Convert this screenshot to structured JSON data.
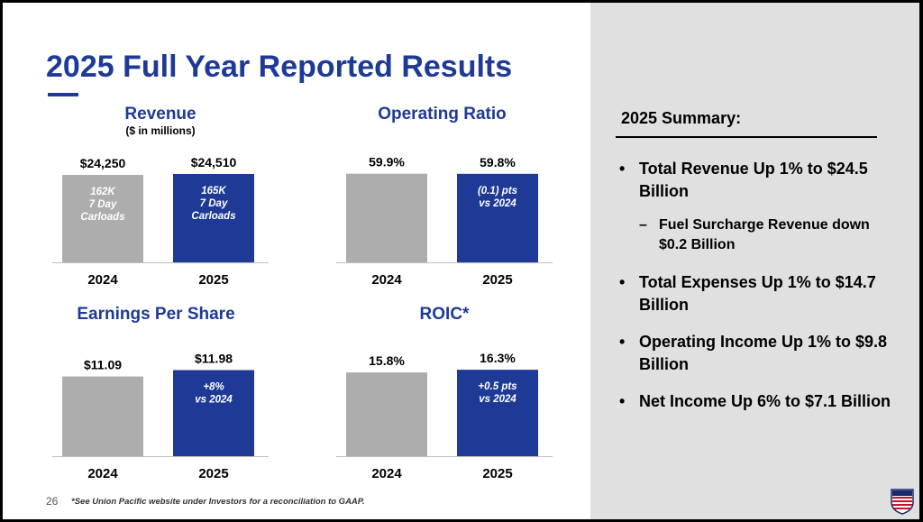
{
  "page": {
    "title": "2025 Full Year Reported Results",
    "page_number": "26",
    "footnote": "*See Union Pacific website under Investors for a reconciliation to GAAP."
  },
  "colors": {
    "accent": "#1e3a96",
    "bar_2024": "#adadad",
    "bar_2025": "#1e3a96",
    "panel": "#e0e0e0"
  },
  "chart_data": [
    {
      "type": "bar",
      "title": "Revenue",
      "subtitle": "($ in millions)",
      "categories": [
        "2024",
        "2025"
      ],
      "values": [
        24250,
        24510
      ],
      "value_labels": [
        "$24,250",
        "$24,510"
      ],
      "bar_notes": [
        [
          "162K",
          "7 Day",
          "Carloads"
        ],
        [
          "165K",
          "7 Day",
          "Carloads"
        ]
      ],
      "ylim": [
        0,
        27500
      ]
    },
    {
      "type": "bar",
      "title": "Operating Ratio",
      "categories": [
        "2024",
        "2025"
      ],
      "values": [
        59.9,
        59.8
      ],
      "value_labels": [
        "59.9%",
        "59.8%"
      ],
      "bar_notes": [
        [],
        [
          "(0.1) pts",
          "vs 2024"
        ]
      ],
      "ylim": [
        0,
        67
      ]
    },
    {
      "type": "bar",
      "title": "Earnings Per Share",
      "categories": [
        "2024",
        "2025"
      ],
      "values": [
        11.09,
        11.98
      ],
      "value_labels": [
        "$11.09",
        "$11.98"
      ],
      "bar_notes": [
        [],
        [
          "+8%",
          "vs 2024"
        ]
      ],
      "ylim": [
        0,
        13.8
      ]
    },
    {
      "type": "bar",
      "title": "ROIC*",
      "categories": [
        "2024",
        "2025"
      ],
      "values": [
        15.8,
        16.3
      ],
      "value_labels": [
        "15.8%",
        "16.3%"
      ],
      "bar_notes": [
        [],
        [
          "+0.5 pts",
          "vs 2024"
        ]
      ],
      "ylim": [
        0,
        18.7
      ]
    }
  ],
  "summary": {
    "title": "2025 Summary:",
    "items": [
      {
        "text": "Total Revenue Up 1% to $24.5 Billion"
      },
      {
        "sub": "Fuel Surcharge Revenue down $0.2 Billion"
      },
      {
        "text": "Total Expenses Up 1% to $14.7 Billion"
      },
      {
        "text": "Operating Income Up 1% to $9.8 Billion"
      },
      {
        "text": "Net Income Up 6% to $7.1 Billion"
      }
    ]
  },
  "icons": {
    "logo": "union-pacific-shield-logo"
  }
}
